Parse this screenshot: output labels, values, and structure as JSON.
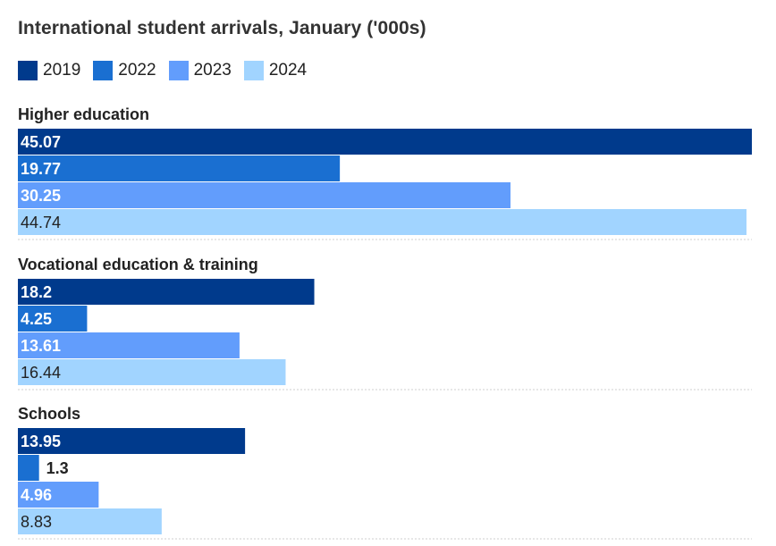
{
  "chart_data": {
    "type": "bar",
    "orientation": "horizontal",
    "title": "International student arrivals, January ('000s)",
    "legend_position": "top-left",
    "grid": false,
    "categories": [
      "Higher education",
      "Vocational education & training",
      "Schools"
    ],
    "series": [
      {
        "name": "2019",
        "color": "#003a8c",
        "values": [
          45.07,
          18.2,
          13.95
        ],
        "labels": [
          "45.07",
          "18.2",
          "13.95"
        ]
      },
      {
        "name": "2022",
        "color": "#1a6fd1",
        "values": [
          19.77,
          4.25,
          1.3
        ],
        "labels": [
          "19.77",
          "4.25",
          "1.3"
        ]
      },
      {
        "name": "2023",
        "color": "#629dfc",
        "values": [
          30.25,
          13.61,
          4.96
        ],
        "labels": [
          "30.25",
          "13.61",
          "4.96"
        ]
      },
      {
        "name": "2024",
        "color": "#a1d4ff",
        "values": [
          44.74,
          16.44,
          8.83
        ],
        "labels": [
          "44.74",
          "16.44",
          "8.83"
        ]
      }
    ],
    "xlim": [
      0,
      45.07
    ],
    "label_colors": {
      "dark": "#ffffff",
      "light": "#222222"
    }
  }
}
